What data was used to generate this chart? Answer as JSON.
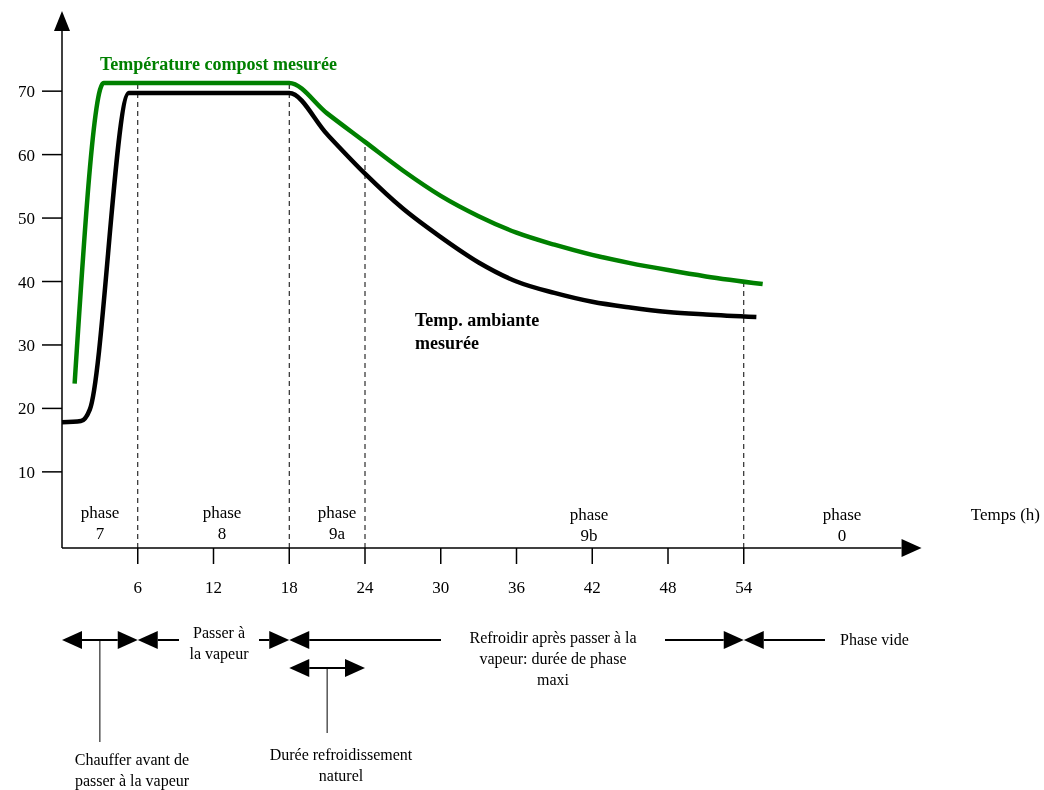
{
  "chart_data": {
    "type": "line",
    "xlabel": "Temps (h)",
    "xlim": [
      0,
      66.5
    ],
    "ylim": [
      -2,
      79.5
    ],
    "xticks": [
      6,
      12,
      18,
      24,
      30,
      36,
      42,
      48,
      54
    ],
    "yticks": [
      10,
      20,
      30,
      40,
      50,
      60,
      70
    ],
    "grid": false,
    "legend": false,
    "marker": "none",
    "line_style": "solid",
    "series": [
      {
        "name": "Température compost mesurée",
        "color": "#008000",
        "x": [
          1,
          3.3,
          18,
          21,
          24,
          27,
          30,
          33,
          36,
          39,
          42,
          45,
          48,
          51,
          55.5
        ],
        "values": [
          23.9,
          71.3,
          71.3,
          66.5,
          62,
          57.5,
          53.5,
          50.3,
          47.7,
          45.8,
          44.2,
          42.9,
          41.8,
          40.8,
          39.6
        ]
      },
      {
        "name": "Temp. ambiante mesurée",
        "color": "#000000",
        "x": [
          0,
          1.5,
          2.2,
          5.3,
          18,
          21,
          24,
          27,
          30,
          33,
          36,
          39,
          42,
          45,
          48,
          51,
          55
        ],
        "values": [
          17.8,
          18,
          19.8,
          69.7,
          69.7,
          63.2,
          57,
          51.5,
          47,
          43,
          40,
          38.2,
          36.8,
          35.9,
          35.2,
          34.8,
          34.4
        ]
      }
    ],
    "ref_lines": [
      {
        "axis": "x",
        "value": 6,
        "line_style": "dashed",
        "color": "#000000"
      },
      {
        "axis": "x",
        "value": 18,
        "line_style": "dashed",
        "color": "#000000"
      },
      {
        "axis": "x",
        "value": 24,
        "line_style": "dashed",
        "color": "#000000"
      },
      {
        "axis": "x",
        "value": 54,
        "line_style": "dashed",
        "color": "#000000"
      }
    ],
    "annotations": [
      "phase\n7",
      "phase\n8",
      "phase\n9a",
      "phase\n9b",
      "phase\n0",
      "Passer à\nla vapeur",
      "Refroidir après passer à la\nvapeur: durée de phase\nmaxi",
      "Phase vide",
      "Chauffer avant de\npasser à la vapeur",
      "Durée refroidissement\nnaturel"
    ]
  }
}
